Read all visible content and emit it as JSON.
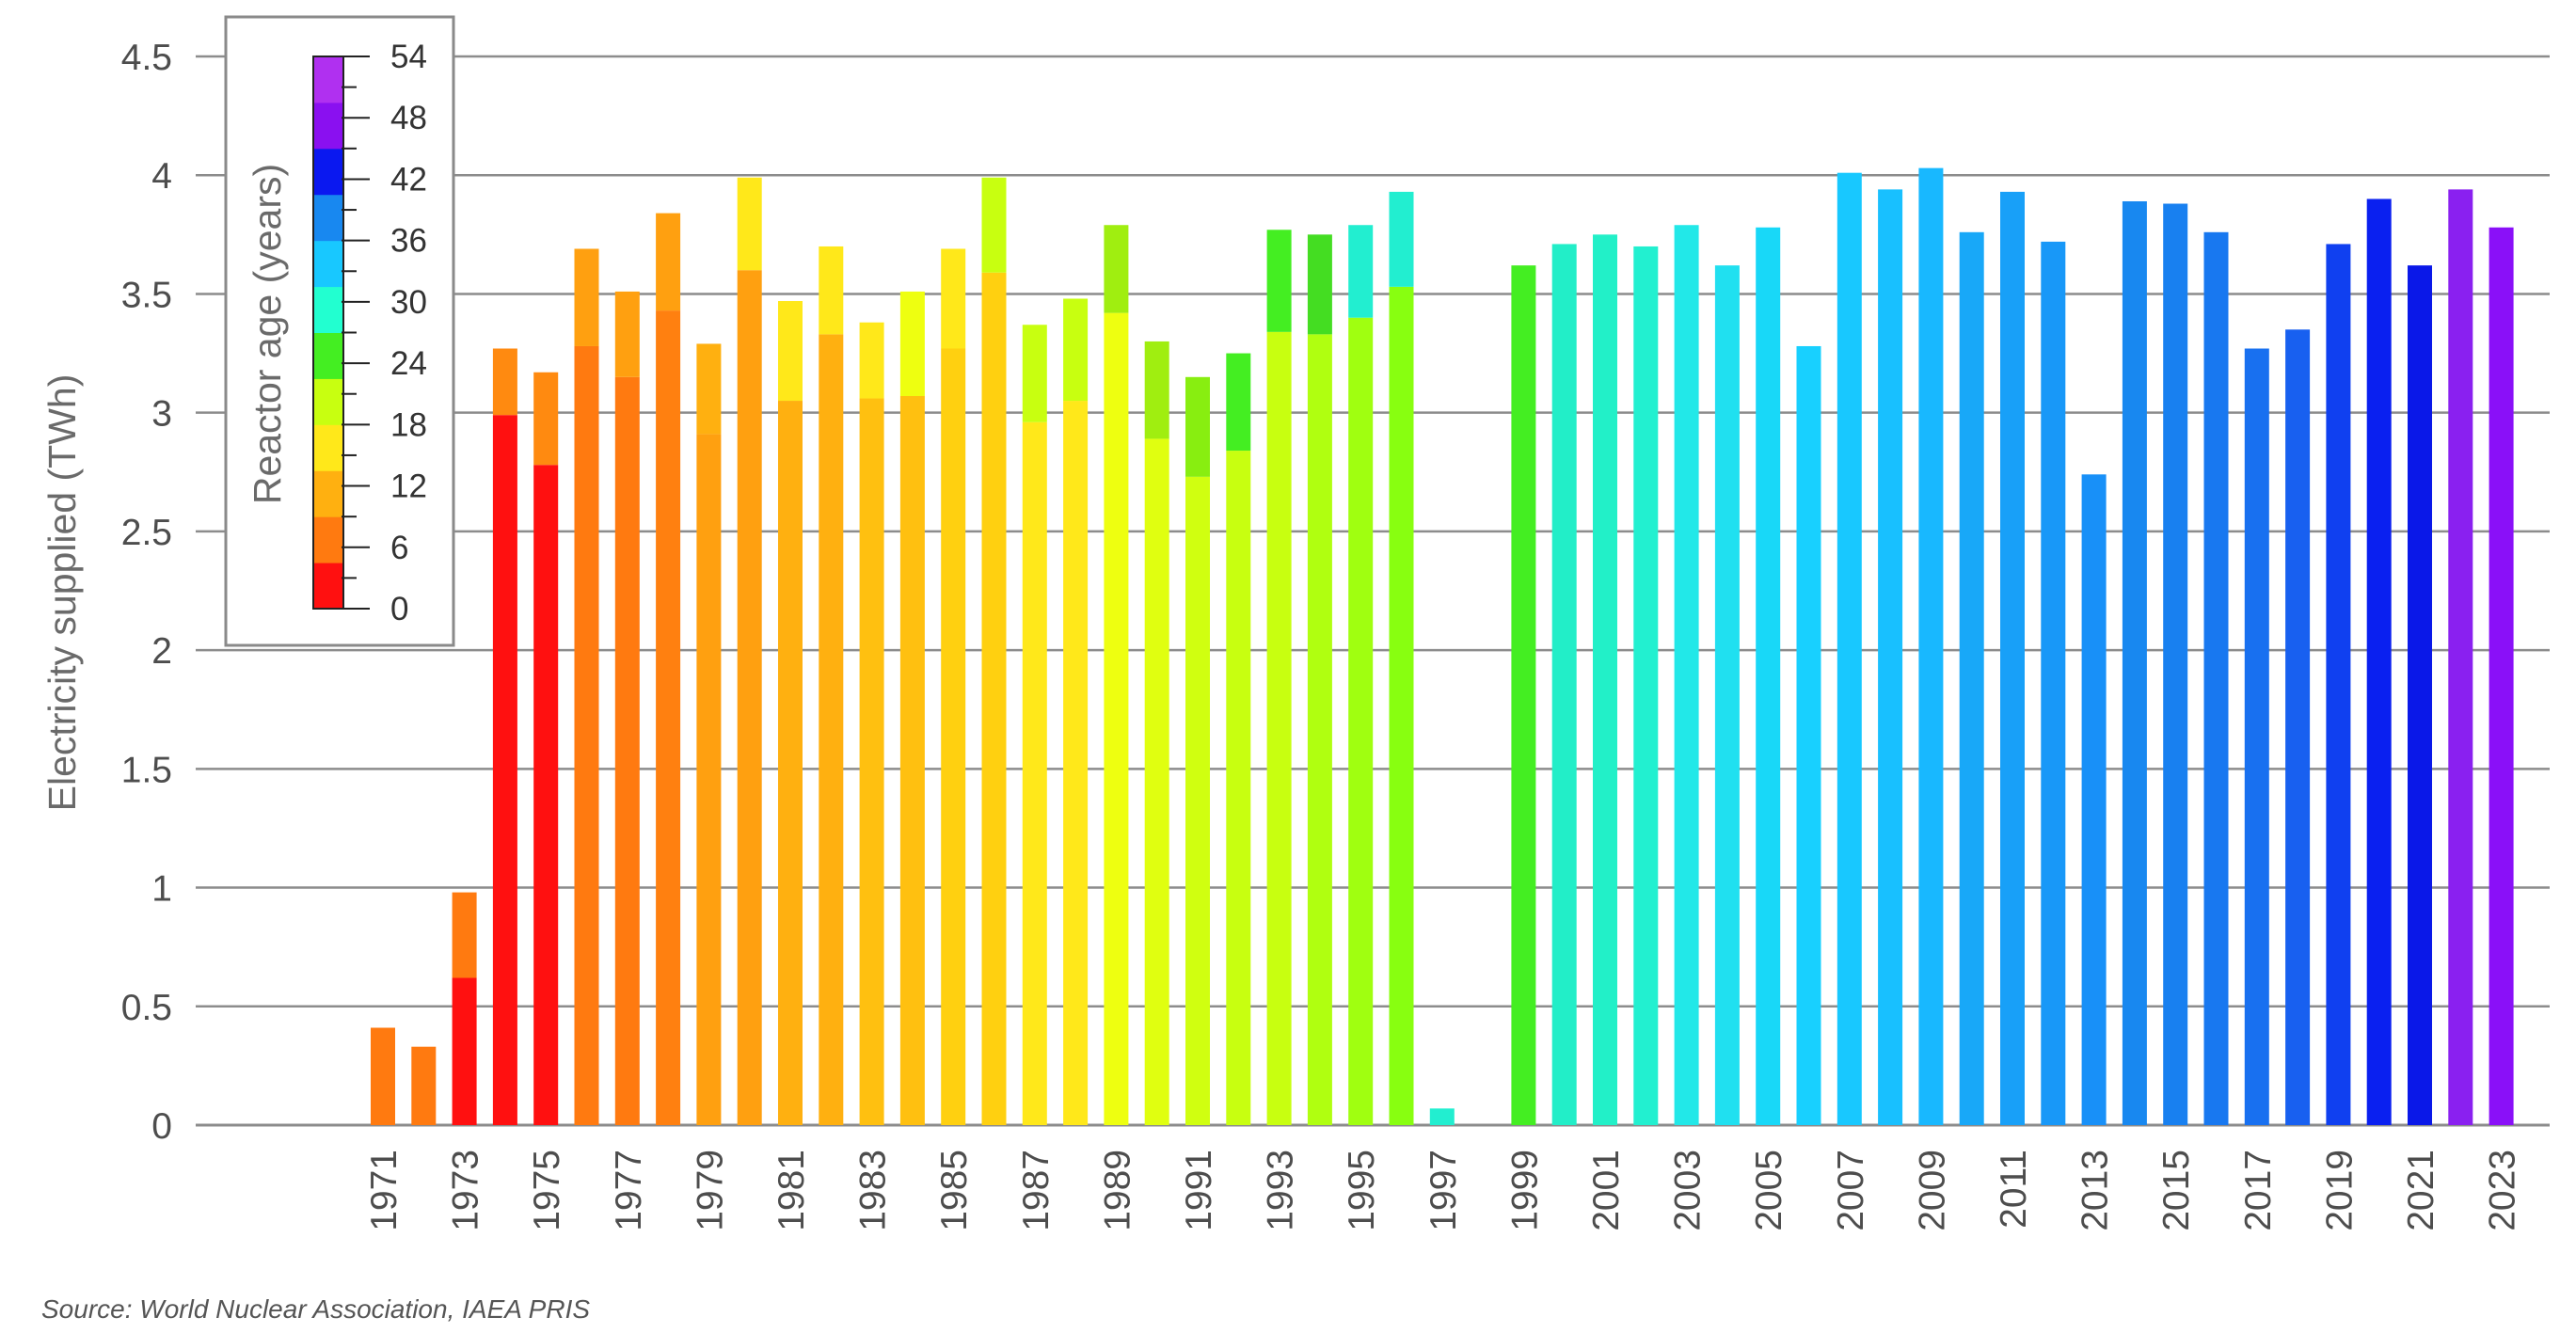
{
  "chart_data": {
    "type": "bar",
    "stacked": true,
    "title": "",
    "xlabel": "",
    "ylabel": "Electricity supplied (TWh)",
    "ylim": [
      0,
      4.5
    ],
    "yticks": [
      "0",
      "0.5",
      "1",
      "1.5",
      "2",
      "2.5",
      "3",
      "3.5",
      "4",
      "4.5"
    ],
    "grid": true,
    "x_tick_labels": [
      "1971",
      "1973",
      "1975",
      "1977",
      "1979",
      "1981",
      "1983",
      "1985",
      "1987",
      "1989",
      "1991",
      "1993",
      "1995",
      "1997",
      "1999",
      "2001",
      "2003",
      "2005",
      "2007",
      "2009",
      "2011",
      "2013",
      "2015",
      "2017",
      "2019",
      "2021",
      "2023"
    ],
    "colorbar": {
      "title": "Reactor age (years)",
      "ticks": [
        "0",
        "6",
        "12",
        "18",
        "24",
        "30",
        "36",
        "42",
        "48",
        "54"
      ],
      "placement": "top-left",
      "colors": [
        "#ff1010",
        "#ff7a10",
        "#ffb010",
        "#ffe81a",
        "#c8ff10",
        "#44ee22",
        "#22ffd0",
        "#18c8ff",
        "#1888f0",
        "#0a18f0",
        "#8a10f0",
        "#b030f0"
      ]
    },
    "series": [
      {
        "year": 1971,
        "total": 0.41,
        "lower": 0.41,
        "lower_color": "#ff7a10",
        "upper_color": "#ff7a10"
      },
      {
        "year": 1972,
        "total": 0.33,
        "lower": 0.33,
        "lower_color": "#ff7a10",
        "upper_color": "#ff7a10"
      },
      {
        "year": 1973,
        "total": 0.98,
        "lower": 0.62,
        "lower_color": "#ff1010",
        "upper_color": "#ff7a10"
      },
      {
        "year": 1974,
        "total": 3.27,
        "lower": 2.99,
        "lower_color": "#ff1010",
        "upper_color": "#ff8a10"
      },
      {
        "year": 1975,
        "total": 3.17,
        "lower": 2.78,
        "lower_color": "#ff1010",
        "upper_color": "#ff8a10"
      },
      {
        "year": 1976,
        "total": 3.69,
        "lower": 3.28,
        "lower_color": "#ff7a10",
        "upper_color": "#ffa010"
      },
      {
        "year": 1977,
        "total": 3.51,
        "lower": 3.15,
        "lower_color": "#ff7a10",
        "upper_color": "#ffa010"
      },
      {
        "year": 1978,
        "total": 3.84,
        "lower": 3.43,
        "lower_color": "#ff8010",
        "upper_color": "#ffa010"
      },
      {
        "year": 1979,
        "total": 3.29,
        "lower": 2.91,
        "lower_color": "#ffa010",
        "upper_color": "#ffb010"
      },
      {
        "year": 1980,
        "total": 3.99,
        "lower": 3.6,
        "lower_color": "#ffa010",
        "upper_color": "#ffe81a"
      },
      {
        "year": 1981,
        "total": 3.47,
        "lower": 3.05,
        "lower_color": "#ffb010",
        "upper_color": "#ffe81a"
      },
      {
        "year": 1982,
        "total": 3.7,
        "lower": 3.33,
        "lower_color": "#ffb010",
        "upper_color": "#ffe81a"
      },
      {
        "year": 1983,
        "total": 3.38,
        "lower": 3.06,
        "lower_color": "#ffc010",
        "upper_color": "#ffe81a"
      },
      {
        "year": 1984,
        "total": 3.51,
        "lower": 3.07,
        "lower_color": "#ffc010",
        "upper_color": "#eeff10"
      },
      {
        "year": 1985,
        "total": 3.69,
        "lower": 3.27,
        "lower_color": "#ffd010",
        "upper_color": "#ffe81a"
      },
      {
        "year": 1986,
        "total": 3.99,
        "lower": 3.59,
        "lower_color": "#ffd010",
        "upper_color": "#c8ff10"
      },
      {
        "year": 1987,
        "total": 3.37,
        "lower": 2.96,
        "lower_color": "#ffe81a",
        "upper_color": "#c8ff10"
      },
      {
        "year": 1988,
        "total": 3.48,
        "lower": 3.05,
        "lower_color": "#ffe81a",
        "upper_color": "#c8ff10"
      },
      {
        "year": 1989,
        "total": 3.79,
        "lower": 3.42,
        "lower_color": "#eeff10",
        "upper_color": "#a0ee10"
      },
      {
        "year": 1990,
        "total": 3.3,
        "lower": 2.89,
        "lower_color": "#e0ff10",
        "upper_color": "#a0ee10"
      },
      {
        "year": 1991,
        "total": 3.15,
        "lower": 2.73,
        "lower_color": "#d0ff10",
        "upper_color": "#88ee10"
      },
      {
        "year": 1992,
        "total": 3.25,
        "lower": 2.84,
        "lower_color": "#c8ff10",
        "upper_color": "#44ee22"
      },
      {
        "year": 1993,
        "total": 3.77,
        "lower": 3.34,
        "lower_color": "#c8ff10",
        "upper_color": "#44ee22"
      },
      {
        "year": 1994,
        "total": 3.75,
        "lower": 3.33,
        "lower_color": "#b0ff10",
        "upper_color": "#44dd22"
      },
      {
        "year": 1995,
        "total": 3.79,
        "lower": 3.4,
        "lower_color": "#a0ff10",
        "upper_color": "#22eed0"
      },
      {
        "year": 1996,
        "total": 3.93,
        "lower": 3.53,
        "lower_color": "#88ff10",
        "upper_color": "#22eed0"
      },
      {
        "year": 1997,
        "total": 0.07,
        "lower": 0.07,
        "lower_color": "#22eed0",
        "upper_color": "#22eed0"
      },
      {
        "year": 1998,
        "total": 0.0,
        "lower": 0.0,
        "lower_color": "#ffffff",
        "upper_color": "#ffffff"
      },
      {
        "year": 1999,
        "total": 3.62,
        "lower": 3.62,
        "lower_color": "#44ee22",
        "upper_color": "#44ee22"
      },
      {
        "year": 2000,
        "total": 3.71,
        "lower": 3.71,
        "lower_color": "#22eec8",
        "upper_color": "#22eec8"
      },
      {
        "year": 2001,
        "total": 3.75,
        "lower": 3.75,
        "lower_color": "#22f0c8",
        "upper_color": "#22f0c8"
      },
      {
        "year": 2002,
        "total": 3.7,
        "lower": 3.7,
        "lower_color": "#22f0d0",
        "upper_color": "#22f0d0"
      },
      {
        "year": 2003,
        "total": 3.79,
        "lower": 3.79,
        "lower_color": "#22e8e8",
        "upper_color": "#22e8e8"
      },
      {
        "year": 2004,
        "total": 3.62,
        "lower": 3.62,
        "lower_color": "#20e0f0",
        "upper_color": "#20e0f0"
      },
      {
        "year": 2005,
        "total": 3.78,
        "lower": 3.78,
        "lower_color": "#18d8f8",
        "upper_color": "#18d8f8"
      },
      {
        "year": 2006,
        "total": 3.28,
        "lower": 3.28,
        "lower_color": "#18d0ff",
        "upper_color": "#18d0ff"
      },
      {
        "year": 2007,
        "total": 4.01,
        "lower": 4.01,
        "lower_color": "#18c8ff",
        "upper_color": "#18c8ff"
      },
      {
        "year": 2008,
        "total": 3.94,
        "lower": 3.94,
        "lower_color": "#18c0ff",
        "upper_color": "#18c0ff"
      },
      {
        "year": 2009,
        "total": 4.03,
        "lower": 4.03,
        "lower_color": "#18b8ff",
        "upper_color": "#18b8ff"
      },
      {
        "year": 2010,
        "total": 3.76,
        "lower": 3.76,
        "lower_color": "#18a8f8",
        "upper_color": "#18a8f8"
      },
      {
        "year": 2011,
        "total": 3.93,
        "lower": 3.93,
        "lower_color": "#18a0f8",
        "upper_color": "#18a0f8"
      },
      {
        "year": 2012,
        "total": 3.72,
        "lower": 3.72,
        "lower_color": "#1898f8",
        "upper_color": "#1898f8"
      },
      {
        "year": 2013,
        "total": 2.74,
        "lower": 2.74,
        "lower_color": "#1890f8",
        "upper_color": "#1890f8"
      },
      {
        "year": 2014,
        "total": 3.89,
        "lower": 3.89,
        "lower_color": "#1888f0",
        "upper_color": "#1888f0"
      },
      {
        "year": 2015,
        "total": 3.88,
        "lower": 3.88,
        "lower_color": "#1880f0",
        "upper_color": "#1880f0"
      },
      {
        "year": 2016,
        "total": 3.76,
        "lower": 3.76,
        "lower_color": "#1878f0",
        "upper_color": "#1878f0"
      },
      {
        "year": 2017,
        "total": 3.27,
        "lower": 3.27,
        "lower_color": "#1870f0",
        "upper_color": "#1870f0"
      },
      {
        "year": 2018,
        "total": 3.35,
        "lower": 3.35,
        "lower_color": "#1860f0",
        "upper_color": "#1860f0"
      },
      {
        "year": 2019,
        "total": 3.71,
        "lower": 3.71,
        "lower_color": "#1040f0",
        "upper_color": "#1040f0"
      },
      {
        "year": 2020,
        "total": 3.9,
        "lower": 3.9,
        "lower_color": "#0a20f0",
        "upper_color": "#0a20f0"
      },
      {
        "year": 2021,
        "total": 3.62,
        "lower": 3.62,
        "lower_color": "#0a18e8",
        "upper_color": "#0a18e8"
      },
      {
        "year": 2022,
        "total": 3.94,
        "lower": 3.94,
        "lower_color": "#8a20f0",
        "upper_color": "#8a20f0"
      },
      {
        "year": 2023,
        "total": 3.78,
        "lower": 3.78,
        "lower_color": "#8a10f8",
        "upper_color": "#8a10f8"
      }
    ]
  },
  "source_note": "Source: World Nuclear Association, IAEA PRIS"
}
